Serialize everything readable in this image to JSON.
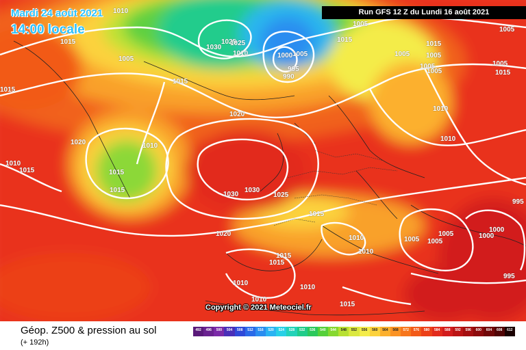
{
  "header": {
    "date": "Mardi 24 août 2021",
    "time": "14:00 locale",
    "run": "Run GFS 12 Z du Lundi 16 août 2021"
  },
  "copyright": "Copyright © 2021 Meteociel.fr",
  "footer": {
    "title": "Géop. Z500 & pression au sol",
    "subtitle": "(+ 192h)"
  },
  "scale": {
    "labels": [
      "492",
      "496",
      "500",
      "504",
      "508",
      "512",
      "516",
      "520",
      "524",
      "528",
      "532",
      "536",
      "540",
      "544",
      "548",
      "552",
      "556",
      "560",
      "564",
      "568",
      "572",
      "576",
      "580",
      "584",
      "588",
      "592",
      "596",
      "600",
      "604",
      "608",
      "612"
    ],
    "colors": [
      "#5a1a7a",
      "#6a2290",
      "#7b2aa8",
      "#4a2fb8",
      "#2f49d8",
      "#2a6ae8",
      "#2a8df0",
      "#2ab3f2",
      "#28d0e6",
      "#23d2b8",
      "#20cc8a",
      "#2cc85c",
      "#55d03a",
      "#86d830",
      "#b8e032",
      "#dbe840",
      "#f4ec4a",
      "#fcd23c",
      "#fcb02e",
      "#fb9324",
      "#f7761c",
      "#f25a18",
      "#ec4018",
      "#e22b1c",
      "#d21c1c",
      "#bb1414",
      "#a40f10",
      "#8c0b0c",
      "#700808",
      "#500506",
      "#1a0202"
    ]
  },
  "isobar_labels": [
    {
      "t": "1010"
    },
    {
      "t": "1015"
    },
    {
      "t": "1025"
    },
    {
      "t": "1005"
    },
    {
      "t": "1015"
    },
    {
      "t": "1030"
    },
    {
      "t": "1025"
    },
    {
      "t": "1010"
    },
    {
      "t": "1000"
    },
    {
      "t": "1005"
    },
    {
      "t": "995"
    },
    {
      "t": "990"
    },
    {
      "t": "1015"
    },
    {
      "t": "1005"
    },
    {
      "t": "1005"
    },
    {
      "t": "1015"
    },
    {
      "t": "1005"
    },
    {
      "t": "1005"
    },
    {
      "t": "1005"
    },
    {
      "t": "1005"
    },
    {
      "t": "1005"
    },
    {
      "t": "1015"
    },
    {
      "t": "1015"
    },
    {
      "t": "1020"
    },
    {
      "t": "1010"
    },
    {
      "t": "1020"
    },
    {
      "t": "1010"
    },
    {
      "t": "1010"
    },
    {
      "t": "1015"
    },
    {
      "t": "1010"
    },
    {
      "t": "1015"
    },
    {
      "t": "1030"
    },
    {
      "t": "1030"
    },
    {
      "t": "1025"
    },
    {
      "t": "1015"
    },
    {
      "t": "995"
    },
    {
      "t": "1000"
    },
    {
      "t": "1005"
    },
    {
      "t": "1005"
    },
    {
      "t": "1005"
    },
    {
      "t": "1000"
    },
    {
      "t": "1020"
    },
    {
      "t": "1010"
    },
    {
      "t": "1010"
    },
    {
      "t": "1015"
    },
    {
      "t": "1015"
    },
    {
      "t": "1010"
    },
    {
      "t": "1010"
    },
    {
      "t": "1015"
    },
    {
      "t": "1010"
    },
    {
      "t": "995"
    },
    {
      "t": "1015"
    }
  ]
}
